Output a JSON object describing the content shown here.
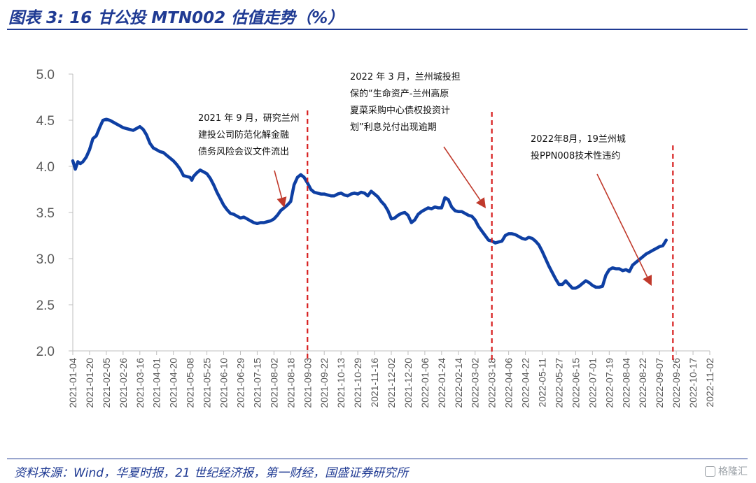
{
  "header": {
    "title": "图表 3:  16 甘公投 MTN002 估值走势（%）"
  },
  "footer": {
    "source": "资料来源：Wind，华夏时报，21 世纪经济报，第一财经，国盛证券研究所",
    "watermark": "格隆汇"
  },
  "chart_data": {
    "type": "line",
    "title": "16 甘公投 MTN002 估值走势（%）",
    "ylim": [
      2.0,
      5.0
    ],
    "yticks": [
      "5.0",
      "4.5",
      "4.0",
      "3.5",
      "3.0",
      "2.5",
      "2.0"
    ],
    "ytick_values": [
      5.0,
      4.5,
      4.0,
      3.5,
      3.0,
      2.5,
      2.0
    ],
    "xticks": [
      "2021-01-04",
      "2021-01-20",
      "2021-02-05",
      "2021-02-26",
      "2021-03-16",
      "2021-04-01",
      "2021-04-20",
      "2021-05-08",
      "2021-05-25",
      "2021-06-10",
      "2021-06-29",
      "2021-07-15",
      "2021-08-02",
      "2021-08-18",
      "2021-09-03",
      "2021-09-22",
      "2021-10-13",
      "2021-10-29",
      "2021-11-16",
      "2021-12-02",
      "2021-12-20",
      "2022-01-06",
      "2022-01-24",
      "2022-02-14",
      "2022-03-02",
      "2022-03-18",
      "2022-04-06",
      "2022-04-22",
      "2022-05-11",
      "2022-05-27",
      "2022-06-15",
      "2022-07-01",
      "2022-07-19",
      "2022-08-04",
      "2022-08-22",
      "2022-09-07",
      "2022-09-26",
      "2022-10-17",
      "2022-11-02"
    ],
    "color": "#0e3fa3",
    "series": [
      {
        "values": [
          [
            0,
            4.06
          ],
          [
            0.15,
            3.97
          ],
          [
            0.3,
            4.05
          ],
          [
            0.45,
            4.03
          ],
          [
            0.6,
            4.05
          ],
          [
            0.8,
            4.1
          ],
          [
            1.0,
            4.18
          ],
          [
            1.2,
            4.3
          ],
          [
            1.4,
            4.33
          ],
          [
            1.6,
            4.42
          ],
          [
            1.8,
            4.5
          ],
          [
            2.0,
            4.51
          ],
          [
            2.2,
            4.5
          ],
          [
            2.4,
            4.48
          ],
          [
            2.6,
            4.46
          ],
          [
            2.8,
            4.44
          ],
          [
            3.0,
            4.42
          ],
          [
            3.2,
            4.41
          ],
          [
            3.4,
            4.4
          ],
          [
            3.6,
            4.39
          ],
          [
            3.8,
            4.41
          ],
          [
            4.0,
            4.43
          ],
          [
            4.2,
            4.4
          ],
          [
            4.4,
            4.34
          ],
          [
            4.6,
            4.25
          ],
          [
            4.8,
            4.2
          ],
          [
            5.0,
            4.18
          ],
          [
            5.2,
            4.16
          ],
          [
            5.4,
            4.15
          ],
          [
            5.6,
            4.12
          ],
          [
            5.8,
            4.09
          ],
          [
            6.0,
            4.06
          ],
          [
            6.2,
            4.02
          ],
          [
            6.4,
            3.97
          ],
          [
            6.6,
            3.9
          ],
          [
            6.8,
            3.89
          ],
          [
            7.0,
            3.88
          ],
          [
            7.1,
            3.85
          ],
          [
            7.2,
            3.89
          ],
          [
            7.4,
            3.93
          ],
          [
            7.6,
            3.96
          ],
          [
            7.8,
            3.94
          ],
          [
            8.0,
            3.92
          ],
          [
            8.2,
            3.87
          ],
          [
            8.4,
            3.8
          ],
          [
            8.6,
            3.72
          ],
          [
            8.8,
            3.65
          ],
          [
            9.0,
            3.58
          ],
          [
            9.2,
            3.53
          ],
          [
            9.4,
            3.49
          ],
          [
            9.6,
            3.48
          ],
          [
            9.8,
            3.46
          ],
          [
            10.0,
            3.44
          ],
          [
            10.2,
            3.45
          ],
          [
            10.4,
            3.43
          ],
          [
            10.6,
            3.41
          ],
          [
            10.8,
            3.39
          ],
          [
            11.0,
            3.38
          ],
          [
            11.2,
            3.39
          ],
          [
            11.4,
            3.39
          ],
          [
            11.6,
            3.4
          ],
          [
            11.8,
            3.41
          ],
          [
            12.0,
            3.43
          ],
          [
            12.2,
            3.47
          ],
          [
            12.4,
            3.52
          ],
          [
            12.6,
            3.55
          ],
          [
            12.8,
            3.58
          ],
          [
            13.0,
            3.62
          ],
          [
            13.2,
            3.8
          ],
          [
            13.4,
            3.88
          ],
          [
            13.6,
            3.91
          ],
          [
            13.8,
            3.88
          ],
          [
            14.0,
            3.82
          ],
          [
            14.2,
            3.75
          ],
          [
            14.4,
            3.72
          ],
          [
            14.6,
            3.71
          ],
          [
            14.8,
            3.7
          ],
          [
            15.0,
            3.7
          ],
          [
            15.2,
            3.69
          ],
          [
            15.4,
            3.68
          ],
          [
            15.6,
            3.68
          ],
          [
            15.8,
            3.7
          ],
          [
            16.0,
            3.71
          ],
          [
            16.2,
            3.69
          ],
          [
            16.4,
            3.68
          ],
          [
            16.6,
            3.7
          ],
          [
            16.8,
            3.71
          ],
          [
            17.0,
            3.7
          ],
          [
            17.2,
            3.72
          ],
          [
            17.4,
            3.71
          ],
          [
            17.6,
            3.68
          ],
          [
            17.8,
            3.73
          ],
          [
            18.0,
            3.7
          ],
          [
            18.2,
            3.67
          ],
          [
            18.4,
            3.62
          ],
          [
            18.6,
            3.58
          ],
          [
            18.8,
            3.52
          ],
          [
            19.0,
            3.43
          ],
          [
            19.2,
            3.44
          ],
          [
            19.4,
            3.47
          ],
          [
            19.6,
            3.49
          ],
          [
            19.8,
            3.5
          ],
          [
            20.0,
            3.47
          ],
          [
            20.2,
            3.39
          ],
          [
            20.4,
            3.42
          ],
          [
            20.6,
            3.48
          ],
          [
            20.8,
            3.51
          ],
          [
            21.0,
            3.53
          ],
          [
            21.2,
            3.55
          ],
          [
            21.4,
            3.54
          ],
          [
            21.6,
            3.56
          ],
          [
            21.8,
            3.55
          ],
          [
            22.0,
            3.55
          ],
          [
            22.2,
            3.66
          ],
          [
            22.4,
            3.64
          ],
          [
            22.6,
            3.56
          ],
          [
            22.8,
            3.52
          ],
          [
            23.0,
            3.51
          ],
          [
            23.2,
            3.51
          ],
          [
            23.4,
            3.49
          ],
          [
            23.6,
            3.47
          ],
          [
            23.8,
            3.46
          ],
          [
            24.0,
            3.42
          ],
          [
            24.2,
            3.35
          ],
          [
            24.4,
            3.3
          ],
          [
            24.6,
            3.25
          ],
          [
            24.8,
            3.2
          ],
          [
            25.0,
            3.19
          ],
          [
            25.2,
            3.17
          ],
          [
            25.4,
            3.18
          ],
          [
            25.6,
            3.19
          ],
          [
            25.8,
            3.25
          ],
          [
            26.0,
            3.27
          ],
          [
            26.2,
            3.27
          ],
          [
            26.4,
            3.26
          ],
          [
            26.6,
            3.24
          ],
          [
            26.8,
            3.22
          ],
          [
            27.0,
            3.21
          ],
          [
            27.2,
            3.23
          ],
          [
            27.4,
            3.22
          ],
          [
            27.6,
            3.19
          ],
          [
            27.8,
            3.15
          ],
          [
            28.0,
            3.08
          ],
          [
            28.2,
            3.0
          ],
          [
            28.4,
            2.92
          ],
          [
            28.6,
            2.85
          ],
          [
            28.8,
            2.78
          ],
          [
            29.0,
            2.72
          ],
          [
            29.2,
            2.72
          ],
          [
            29.4,
            2.76
          ],
          [
            29.6,
            2.72
          ],
          [
            29.8,
            2.68
          ],
          [
            30.0,
            2.68
          ],
          [
            30.2,
            2.7
          ],
          [
            30.4,
            2.73
          ],
          [
            30.6,
            2.76
          ],
          [
            30.8,
            2.74
          ],
          [
            31.0,
            2.71
          ],
          [
            31.2,
            2.69
          ],
          [
            31.4,
            2.69
          ],
          [
            31.6,
            2.7
          ],
          [
            31.8,
            2.82
          ],
          [
            32.0,
            2.88
          ],
          [
            32.2,
            2.9
          ],
          [
            32.4,
            2.89
          ],
          [
            32.6,
            2.89
          ],
          [
            32.8,
            2.87
          ],
          [
            33.0,
            2.88
          ],
          [
            33.2,
            2.86
          ],
          [
            33.4,
            2.93
          ],
          [
            33.6,
            2.96
          ],
          [
            33.8,
            2.99
          ],
          [
            34.0,
            3.02
          ],
          [
            34.2,
            3.05
          ],
          [
            34.4,
            3.07
          ],
          [
            34.6,
            3.09
          ],
          [
            34.8,
            3.11
          ],
          [
            35.0,
            3.13
          ],
          [
            35.2,
            3.14
          ],
          [
            35.4,
            3.2
          ]
        ]
      }
    ],
    "events": [
      {
        "x": 14.0,
        "point": [
          12.6,
          3.55
        ],
        "lines": [
          "2021 年 9 月，研究兰州",
          "建投公司防范化解金融",
          "债务风险会议文件流出"
        ]
      },
      {
        "x": 25.0,
        "point": [
          24.6,
          3.54
        ],
        "lines": [
          "2022 年 3 月，兰州城投担",
          "保的“生命资产-兰州高原",
          "夏菜采购中心债权投资计",
          "划”利息兑付出现逾期"
        ]
      },
      {
        "x": 35.8,
        "point": [
          34.5,
          2.7
        ],
        "lines": [
          "2022年8月，19兰州城",
          "投PPN008技术性违约"
        ]
      }
    ]
  }
}
